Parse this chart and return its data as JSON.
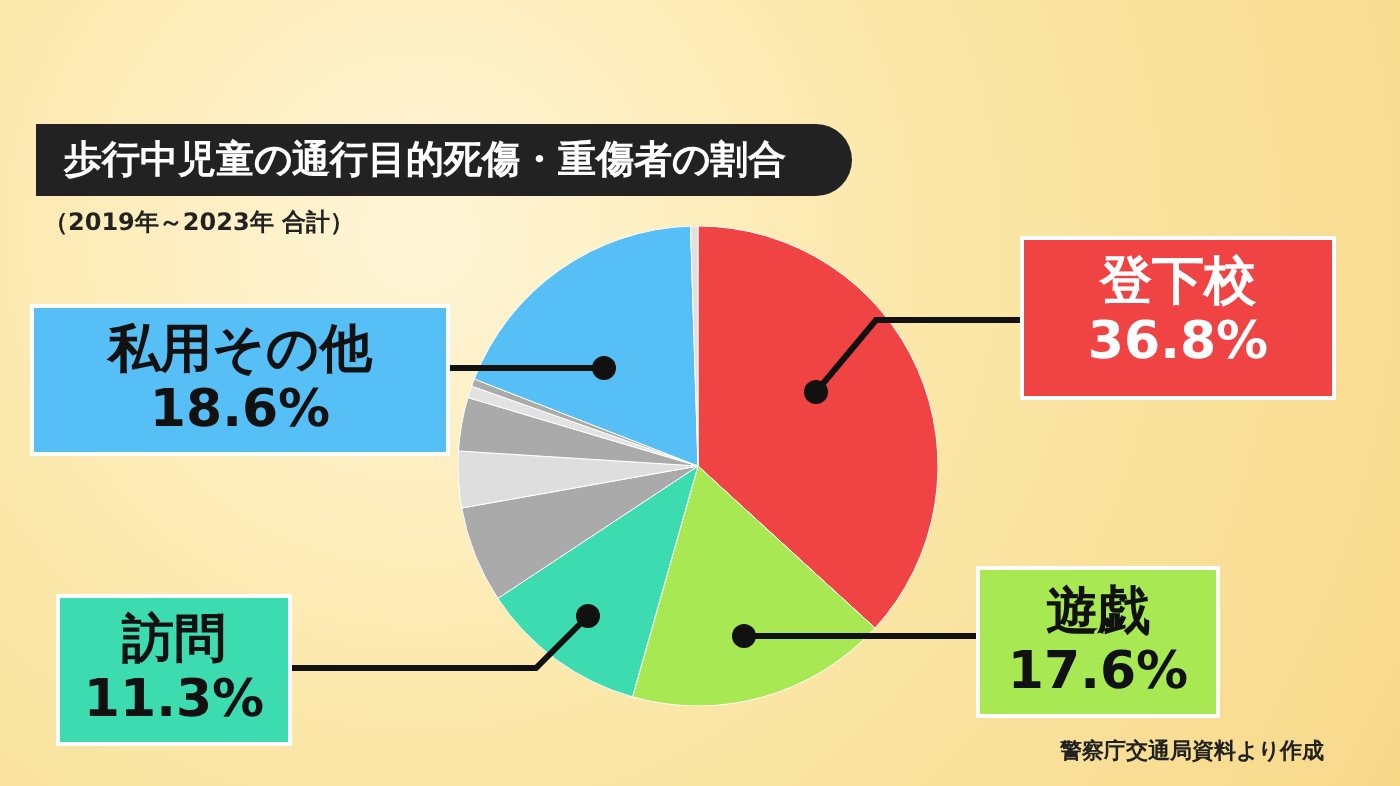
{
  "chart_data": {
    "type": "pie",
    "title": "歩行中児童の通行目的死傷・重傷者の割合",
    "subtitle": "（2019年～2023年 合計）",
    "categories": [
      "登下校",
      "遊戯",
      "訪問",
      null,
      null,
      null,
      null,
      null,
      "私用その他",
      null
    ],
    "values": [
      36.8,
      17.6,
      11.3,
      6.5,
      3.8,
      3.6,
      0.8,
      0.5,
      18.6,
      0.5
    ],
    "value_labels": [
      "36.8%",
      "17.6%",
      "11.3%",
      null,
      null,
      null,
      null,
      null,
      "18.6%",
      null
    ],
    "colors": [
      "#f04343",
      "#a8e953",
      "#3ddcb0",
      "#aaaaaa",
      "#dedede",
      "#aaaaaa",
      "#e2e2e2",
      "#aaaaaa",
      "#55bff6",
      "#e0e0e0"
    ],
    "annotations": [
      "警察庁交通局資料より作成"
    ]
  }
}
